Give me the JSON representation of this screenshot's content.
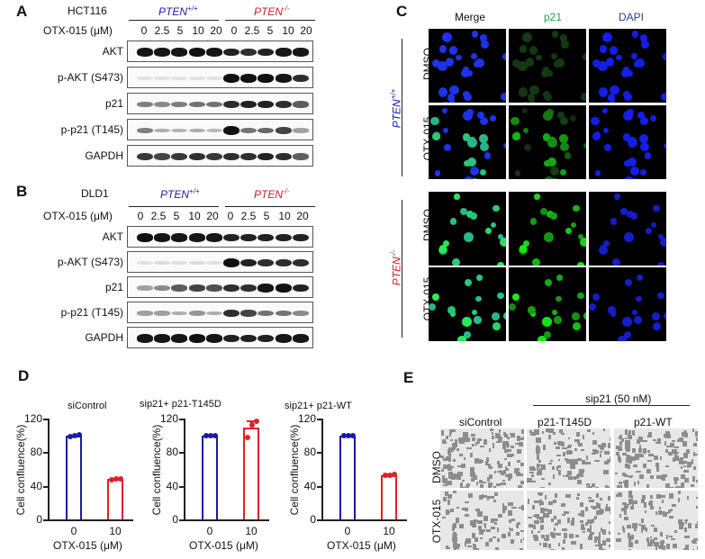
{
  "panel_a": {
    "label": "A",
    "cell_line": "HCT116",
    "treatment_label": "OTX-015 (μM)",
    "group_wt": {
      "gene": "PTEN",
      "genotype": "+/+",
      "color": "#1a1aa8"
    },
    "group_ko": {
      "gene": "PTEN",
      "genotype": "-/-",
      "color": "#d21a2a"
    },
    "doses": [
      "0",
      "2.5",
      "5",
      "10",
      "20",
      "0",
      "2.5",
      "5",
      "10",
      "20"
    ],
    "blots": [
      {
        "name": "AKT",
        "intensity": [
          0.9,
          0.9,
          0.9,
          0.95,
          0.9,
          0.85,
          0.8,
          0.85,
          0.9,
          0.9
        ]
      },
      {
        "name": "p-AKT (S473)",
        "intensity": [
          0.02,
          0.02,
          0.02,
          0.02,
          0.02,
          1.0,
          0.95,
          0.95,
          0.9,
          0.8
        ]
      },
      {
        "name": "p21",
        "intensity": [
          0.45,
          0.4,
          0.45,
          0.5,
          0.5,
          0.8,
          0.85,
          0.85,
          0.8,
          0.6
        ]
      },
      {
        "name": "p-p21 (T145)",
        "intensity": [
          0.45,
          0.25,
          0.22,
          0.25,
          0.2,
          1.0,
          0.5,
          0.55,
          0.7,
          0.3
        ]
      },
      {
        "name": "GAPDH",
        "intensity": [
          0.75,
          0.7,
          0.75,
          0.8,
          0.75,
          0.8,
          0.8,
          0.85,
          0.8,
          0.6
        ]
      }
    ]
  },
  "panel_b": {
    "label": "B",
    "cell_line": "DLD1",
    "treatment_label": "OTX-015 (μM)",
    "group_wt": {
      "gene": "PTEN",
      "genotype": "+/+",
      "color": "#1a1aa8"
    },
    "group_ko": {
      "gene": "PTEN",
      "genotype": "-/-",
      "color": "#d21a2a"
    },
    "doses": [
      "0",
      "2.5",
      "5",
      "10",
      "20",
      "0",
      "2.5",
      "5",
      "10",
      "20"
    ],
    "blots": [
      {
        "name": "AKT",
        "intensity": [
          0.95,
          0.9,
          0.9,
          0.9,
          0.9,
          0.85,
          0.85,
          0.85,
          0.85,
          0.85
        ]
      },
      {
        "name": "p-AKT (S473)",
        "intensity": [
          0.02,
          0.05,
          0.03,
          0.04,
          0.02,
          1.0,
          0.85,
          0.8,
          0.8,
          0.8
        ]
      },
      {
        "name": "p21",
        "intensity": [
          0.3,
          0.4,
          0.6,
          0.7,
          0.65,
          0.8,
          0.8,
          0.9,
          0.95,
          0.85
        ]
      },
      {
        "name": "p-p21 (T145)",
        "intensity": [
          0.3,
          0.3,
          0.25,
          0.35,
          0.25,
          0.8,
          0.7,
          0.5,
          0.5,
          0.4
        ]
      },
      {
        "name": "GAPDH",
        "intensity": [
          0.9,
          0.9,
          0.9,
          0.95,
          0.9,
          0.85,
          0.85,
          0.85,
          0.9,
          0.9
        ]
      }
    ]
  },
  "panel_c": {
    "label": "C",
    "columns": [
      "Merge",
      "p21",
      "DAPI"
    ],
    "column_colors": [
      "#111111",
      "#1ea04a",
      "#2a3c9a"
    ],
    "groups": [
      {
        "gene": "PTEN",
        "genotype": "+/+",
        "color": "#1a1aa8",
        "rows": [
          "DMSO",
          "OTX-015"
        ]
      },
      {
        "gene": "PTEN",
        "genotype": "-/-",
        "color": "#d21a2a",
        "rows": [
          "DMSO",
          "OTX-015"
        ]
      }
    ]
  },
  "panel_d": {
    "label": "D",
    "ylabel": "Cell confluence(%)",
    "xlabel": "OTX-015 (μM)"
  },
  "panel_e": {
    "label": "E",
    "header": "sip21 (50 nM)",
    "columns": [
      "siControl",
      "p21-T145D",
      "p21-WT"
    ],
    "rows": [
      "DMSO",
      "OTX-015"
    ]
  },
  "chart_data": [
    {
      "type": "bar",
      "title": "siControl",
      "categories": [
        "0",
        "10"
      ],
      "values": [
        100,
        48
      ],
      "points": [
        [
          99,
          100,
          101
        ],
        [
          47.5,
          48,
          48.5
        ]
      ],
      "colors": [
        "#1a1aa8",
        "#e0202a"
      ],
      "xlabel": "OTX-015 (μM)",
      "ylabel": "Cell confluence(%)",
      "ylim": [
        0,
        120
      ],
      "yticks": [
        0,
        40,
        80,
        120
      ],
      "grid": false
    },
    {
      "type": "bar",
      "title": "sip21+ p21-T145D",
      "categories": [
        "0",
        "10"
      ],
      "values": [
        100,
        109
      ],
      "errors": [
        0.5,
        9
      ],
      "points": [
        [
          100,
          100,
          100
        ],
        [
          98,
          113,
          117
        ]
      ],
      "colors": [
        "#1a1aa8",
        "#e0202a"
      ],
      "xlabel": "OTX-015 (μM)",
      "ylabel": "Cell confluence(%)",
      "ylim": [
        0,
        120
      ],
      "yticks": [
        0,
        40,
        80,
        120
      ],
      "grid": false
    },
    {
      "type": "bar",
      "title": "sip21+ p21-WT",
      "categories": [
        "0",
        "10"
      ],
      "values": [
        100,
        53
      ],
      "points": [
        [
          100,
          100,
          100
        ],
        [
          52,
          53,
          54
        ]
      ],
      "colors": [
        "#1a1aa8",
        "#e0202a"
      ],
      "xlabel": "OTX-015 (μM)",
      "ylabel": "Cell confluence(%)",
      "ylim": [
        0,
        120
      ],
      "yticks": [
        0,
        40,
        80,
        120
      ],
      "grid": false
    }
  ]
}
